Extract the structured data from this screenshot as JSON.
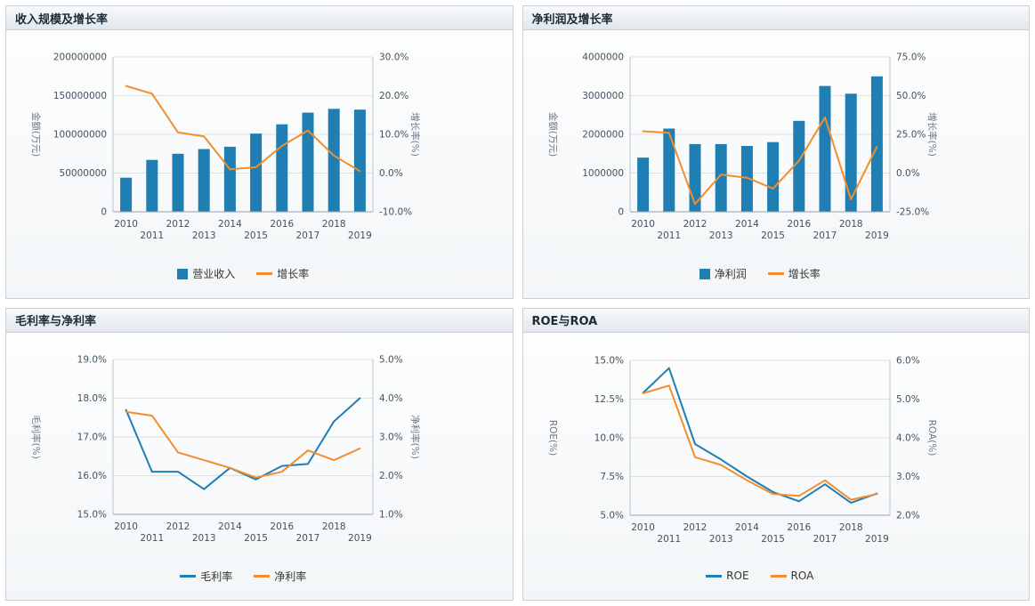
{
  "page": {
    "background": "#ffffff"
  },
  "colors": {
    "bar_blue": "#1f7eb2",
    "line_blue": "#1f7eb2",
    "line_orange": "#f28e2c"
  },
  "chart_data": [
    {
      "id": "revenue-growth",
      "title": "收入规模及增长率",
      "type": "bar+line",
      "categories": [
        "2010",
        "2011",
        "2012",
        "2013",
        "2014",
        "2015",
        "2016",
        "2017",
        "2018",
        "2019"
      ],
      "left_axis": {
        "label": "金额(万元)",
        "min": 0,
        "max": 200000000,
        "ticks": [
          {
            "v": 0,
            "label": "0"
          },
          {
            "v": 50000000,
            "label": "50000000"
          },
          {
            "v": 100000000,
            "label": "100000000"
          },
          {
            "v": 150000000,
            "label": "150000000"
          },
          {
            "v": 200000000,
            "label": "200000000"
          }
        ]
      },
      "right_axis": {
        "label": "增长率(%)",
        "min": -10,
        "max": 30,
        "ticks": [
          {
            "v": -10,
            "label": "-10.0%"
          },
          {
            "v": 0,
            "label": "0.0%"
          },
          {
            "v": 10,
            "label": "10.0%"
          },
          {
            "v": 20,
            "label": "20.0%"
          },
          {
            "v": 30,
            "label": "30.0%"
          }
        ]
      },
      "series": [
        {
          "name": "营业收入",
          "type": "bar",
          "axis": "left",
          "color": "#1f7eb2",
          "values": [
            44000000,
            67000000,
            75000000,
            81000000,
            84000000,
            101000000,
            113000000,
            128000000,
            133000000,
            132000000
          ]
        },
        {
          "name": "增长率",
          "type": "line",
          "axis": "right",
          "color": "#f28e2c",
          "values": [
            22.5,
            20.5,
            10.5,
            9.5,
            1.0,
            1.5,
            7.0,
            11.0,
            4.5,
            0.5
          ]
        }
      ]
    },
    {
      "id": "netprofit-growth",
      "title": "净利润及增长率",
      "type": "bar+line",
      "categories": [
        "2010",
        "2011",
        "2012",
        "2013",
        "2014",
        "2015",
        "2016",
        "2017",
        "2018",
        "2019"
      ],
      "left_axis": {
        "label": "金额(万元)",
        "min": 0,
        "max": 4000000,
        "ticks": [
          {
            "v": 0,
            "label": "0"
          },
          {
            "v": 1000000,
            "label": "1000000"
          },
          {
            "v": 2000000,
            "label": "2000000"
          },
          {
            "v": 3000000,
            "label": "3000000"
          },
          {
            "v": 4000000,
            "label": "4000000"
          }
        ]
      },
      "right_axis": {
        "label": "增长率(%)",
        "min": -25,
        "max": 75,
        "ticks": [
          {
            "v": -25,
            "label": "-25.0%"
          },
          {
            "v": 0,
            "label": "0.0%"
          },
          {
            "v": 25,
            "label": "25.0%"
          },
          {
            "v": 50,
            "label": "50.0%"
          },
          {
            "v": 75,
            "label": "75.0%"
          }
        ]
      },
      "series": [
        {
          "name": "净利润",
          "type": "bar",
          "axis": "left",
          "color": "#1f7eb2",
          "values": [
            1400000,
            2150000,
            1750000,
            1750000,
            1700000,
            1800000,
            2350000,
            3250000,
            3050000,
            3500000
          ]
        },
        {
          "name": "增长率",
          "type": "line",
          "axis": "right",
          "color": "#f28e2c",
          "values": [
            27,
            26,
            -20,
            -1,
            -3,
            -10,
            8,
            36,
            -17,
            17
          ]
        }
      ]
    },
    {
      "id": "gross-net-margin",
      "title": "毛利率与净利率",
      "type": "line",
      "categories": [
        "2010",
        "2011",
        "2012",
        "2013",
        "2014",
        "2015",
        "2016",
        "2017",
        "2018",
        "2019"
      ],
      "left_axis": {
        "label": "毛利率(%)",
        "min": 15,
        "max": 19,
        "ticks": [
          {
            "v": 15,
            "label": "15.0%"
          },
          {
            "v": 16,
            "label": "16.0%"
          },
          {
            "v": 17,
            "label": "17.0%"
          },
          {
            "v": 18,
            "label": "18.0%"
          },
          {
            "v": 19,
            "label": "19.0%"
          }
        ]
      },
      "right_axis": {
        "label": "净利率(%)",
        "min": 1,
        "max": 5,
        "ticks": [
          {
            "v": 1,
            "label": "1.0%"
          },
          {
            "v": 2,
            "label": "2.0%"
          },
          {
            "v": 3,
            "label": "3.0%"
          },
          {
            "v": 4,
            "label": "4.0%"
          },
          {
            "v": 5,
            "label": "5.0%"
          }
        ]
      },
      "series": [
        {
          "name": "毛利率",
          "type": "line",
          "axis": "left",
          "color": "#1f7eb2",
          "values": [
            17.7,
            16.1,
            16.1,
            15.65,
            16.2,
            15.9,
            16.25,
            16.3,
            17.4,
            18.0
          ]
        },
        {
          "name": "净利率",
          "type": "line",
          "axis": "right",
          "color": "#f28e2c",
          "values": [
            3.65,
            3.55,
            2.6,
            2.4,
            2.2,
            1.95,
            2.1,
            2.65,
            2.4,
            2.7
          ]
        }
      ]
    },
    {
      "id": "roe-roa",
      "title": "ROE与ROA",
      "type": "line",
      "categories": [
        "2010",
        "2011",
        "2012",
        "2013",
        "2014",
        "2015",
        "2016",
        "2017",
        "2018",
        "2019"
      ],
      "left_axis": {
        "label": "ROE(%)",
        "min": 5,
        "max": 15,
        "ticks": [
          {
            "v": 5,
            "label": "5.0%"
          },
          {
            "v": 7.5,
            "label": "7.5%"
          },
          {
            "v": 10,
            "label": "10.0%"
          },
          {
            "v": 12.5,
            "label": "12.5%"
          },
          {
            "v": 15,
            "label": "15.0%"
          }
        ]
      },
      "right_axis": {
        "label": "ROA(%)",
        "min": 2,
        "max": 6,
        "ticks": [
          {
            "v": 2,
            "label": "2.0%"
          },
          {
            "v": 3,
            "label": "3.0%"
          },
          {
            "v": 4,
            "label": "4.0%"
          },
          {
            "v": 5,
            "label": "5.0%"
          },
          {
            "v": 6,
            "label": "6.0%"
          }
        ]
      },
      "series": [
        {
          "name": "ROE",
          "type": "line",
          "axis": "left",
          "color": "#1f7eb2",
          "values": [
            12.9,
            14.5,
            9.6,
            8.6,
            7.5,
            6.5,
            5.9,
            7.0,
            5.8,
            6.4
          ]
        },
        {
          "name": "ROA",
          "type": "line",
          "axis": "right",
          "color": "#f28e2c",
          "values": [
            5.15,
            5.35,
            3.5,
            3.3,
            2.9,
            2.55,
            2.5,
            2.9,
            2.4,
            2.55
          ]
        }
      ]
    }
  ]
}
